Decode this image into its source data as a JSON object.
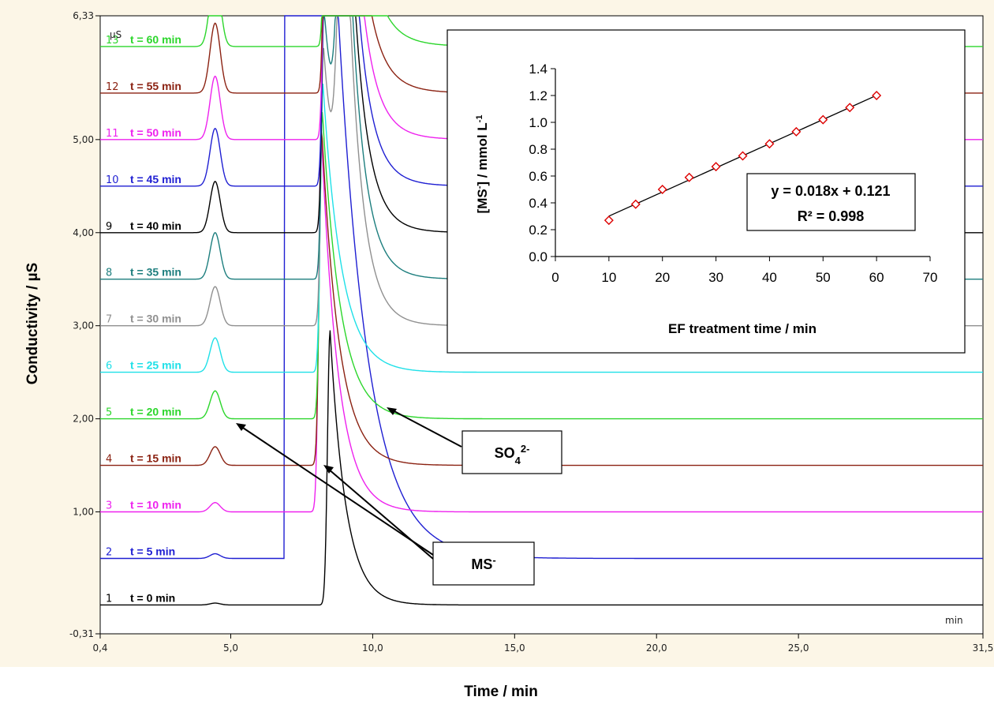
{
  "chart_data": [
    {
      "type": "line",
      "xlabel": "Time / min",
      "ylabel": "Conductivity / µS",
      "xlim": [
        0.4,
        31.5
      ],
      "ylim": [
        -0.31,
        6.33
      ],
      "x_ticks": [
        "0,4",
        "5,0",
        "10,0",
        "15,0",
        "20,0",
        "25,0",
        "31,5"
      ],
      "x_tick_values": [
        0.4,
        5.0,
        10.0,
        15.0,
        20.0,
        25.0,
        31.5
      ],
      "y_ticks": [
        "-0,31",
        "1,00",
        "2,00",
        "3,00",
        "4,00",
        "5,00",
        "6,33"
      ],
      "y_tick_values": [
        -0.31,
        1.0,
        2.0,
        3.0,
        4.0,
        5.0,
        6.33
      ],
      "y_unit": "µS",
      "x_unit": "min",
      "series": [
        {
          "num": "1",
          "name": "t = 0 min",
          "color": "#000000",
          "baseline": 0.0,
          "ms_height": 0.02,
          "so4_height": 2.95
        },
        {
          "num": "2",
          "name": "t = 5 min",
          "color": "#1f1fd2",
          "baseline": 0.5,
          "ms_height": 0.05,
          "so4_height": 7.0
        },
        {
          "num": "3",
          "name": "t = 10 min",
          "color": "#ee22ee",
          "baseline": 1.0,
          "ms_height": 0.1,
          "so4_height": 4.1
        },
        {
          "num": "4",
          "name": "t = 15 min",
          "color": "#8b2212",
          "baseline": 1.5,
          "ms_height": 0.2,
          "so4_height": 3.6
        },
        {
          "num": "5",
          "name": "t = 20 min",
          "color": "#2cd62c",
          "baseline": 2.0,
          "ms_height": 0.3,
          "so4_height": 3.3
        },
        {
          "num": "6",
          "name": "t = 25 min",
          "color": "#1fe0e8",
          "baseline": 2.5,
          "ms_height": 0.37,
          "so4_height": 3.1
        },
        {
          "num": "7",
          "name": "t = 30 min",
          "color": "#909090",
          "baseline": 3.0,
          "ms_height": 0.42,
          "so4_height": 3.0
        },
        {
          "num": "8",
          "name": "t = 35 min",
          "color": "#1d7e7e",
          "baseline": 3.5,
          "ms_height": 0.5,
          "so4_height": 2.9
        },
        {
          "num": "9",
          "name": "t = 40 min",
          "color": "#000000",
          "baseline": 4.0,
          "ms_height": 0.55,
          "so4_height": 2.9
        },
        {
          "num": "10",
          "name": "t = 45 min",
          "color": "#1f1fd2",
          "baseline": 4.5,
          "ms_height": 0.62,
          "so4_height": 2.8
        },
        {
          "num": "11",
          "name": "t = 50 min",
          "color": "#ee22ee",
          "baseline": 5.0,
          "ms_height": 0.68,
          "so4_height": 2.8
        },
        {
          "num": "12",
          "name": "t = 55 min",
          "color": "#8b2212",
          "baseline": 5.5,
          "ms_height": 0.75,
          "so4_height": 2.8
        },
        {
          "num": "13",
          "name": "t = 60 min",
          "color": "#2cd62c",
          "baseline": 6.0,
          "ms_height": 0.82,
          "so4_height": 2.8
        }
      ],
      "annotations": [
        "MS-",
        "SO42-"
      ]
    },
    {
      "type": "scatter",
      "xlabel": "EF treatment time / min",
      "ylabel": "[MS-] / mmol L-1",
      "xlim": [
        0,
        70
      ],
      "ylim": [
        0.0,
        1.4
      ],
      "x_ticks": [
        "0",
        "10",
        "20",
        "30",
        "40",
        "50",
        "60",
        "70"
      ],
      "y_ticks": [
        "0.0",
        "0.2",
        "0.4",
        "0.6",
        "0.8",
        "1.0",
        "1.2",
        "1.4"
      ],
      "x": [
        10,
        15,
        20,
        25,
        30,
        35,
        40,
        45,
        50,
        55,
        60
      ],
      "y": [
        0.27,
        0.39,
        0.5,
        0.59,
        0.67,
        0.75,
        0.84,
        0.93,
        1.02,
        1.11,
        1.2
      ],
      "fit": {
        "slope": 0.018,
        "intercept": 0.121,
        "equation": "y = 0.018x + 0.121",
        "r2": "R² = 0.998"
      },
      "marker_color": "#dd0000"
    }
  ]
}
